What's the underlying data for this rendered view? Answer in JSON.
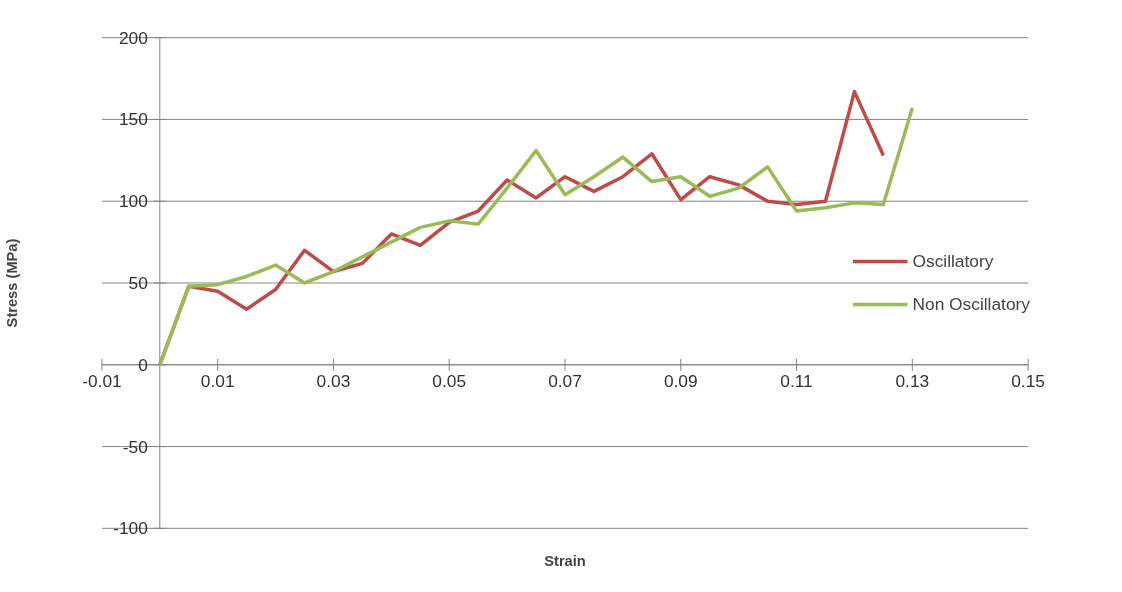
{
  "chart_data": {
    "type": "line",
    "xlabel": "Strain",
    "ylabel": "Stress (MPa)",
    "xlim": [
      -0.01,
      0.15
    ],
    "xticks": [
      -0.01,
      0.01,
      0.03,
      0.05,
      0.07,
      0.09,
      0.11,
      0.13,
      0.15
    ],
    "ylim": [
      -100,
      200
    ],
    "yticks": [
      -100,
      -50,
      0,
      50,
      100,
      150,
      200
    ],
    "grid": "y",
    "legend": "right",
    "marker": "none",
    "line_style": "solid",
    "series": [
      {
        "name": "Oscillatory",
        "color": "#be4b48",
        "x": [
          0,
          0.005,
          0.01,
          0.015,
          0.02,
          0.025,
          0.03,
          0.035,
          0.04,
          0.045,
          0.05,
          0.055,
          0.06,
          0.065,
          0.07,
          0.075,
          0.08,
          0.085,
          0.09,
          0.095,
          0.1,
          0.105,
          0.11,
          0.115,
          0.12,
          0.125
        ],
        "values": [
          0,
          48,
          45,
          34,
          46,
          70,
          57,
          62,
          80,
          73,
          87,
          94,
          113,
          102,
          115,
          106,
          115,
          129,
          101,
          115,
          110,
          100,
          98,
          100,
          167,
          128
        ]
      },
      {
        "name": "Non Oscillatory",
        "color": "#9bbb59",
        "x": [
          0,
          0.005,
          0.01,
          0.015,
          0.02,
          0.025,
          0.03,
          0.035,
          0.04,
          0.045,
          0.05,
          0.055,
          0.06,
          0.065,
          0.07,
          0.075,
          0.08,
          0.085,
          0.09,
          0.095,
          0.1,
          0.105,
          0.11,
          0.115,
          0.12,
          0.125,
          0.13
        ],
        "values": [
          0,
          48,
          49,
          54,
          61,
          50,
          57,
          66,
          75,
          84,
          88,
          86,
          108,
          131,
          104,
          115,
          127,
          112,
          115,
          103,
          108,
          121,
          94,
          96,
          99,
          98,
          157
        ]
      }
    ]
  }
}
